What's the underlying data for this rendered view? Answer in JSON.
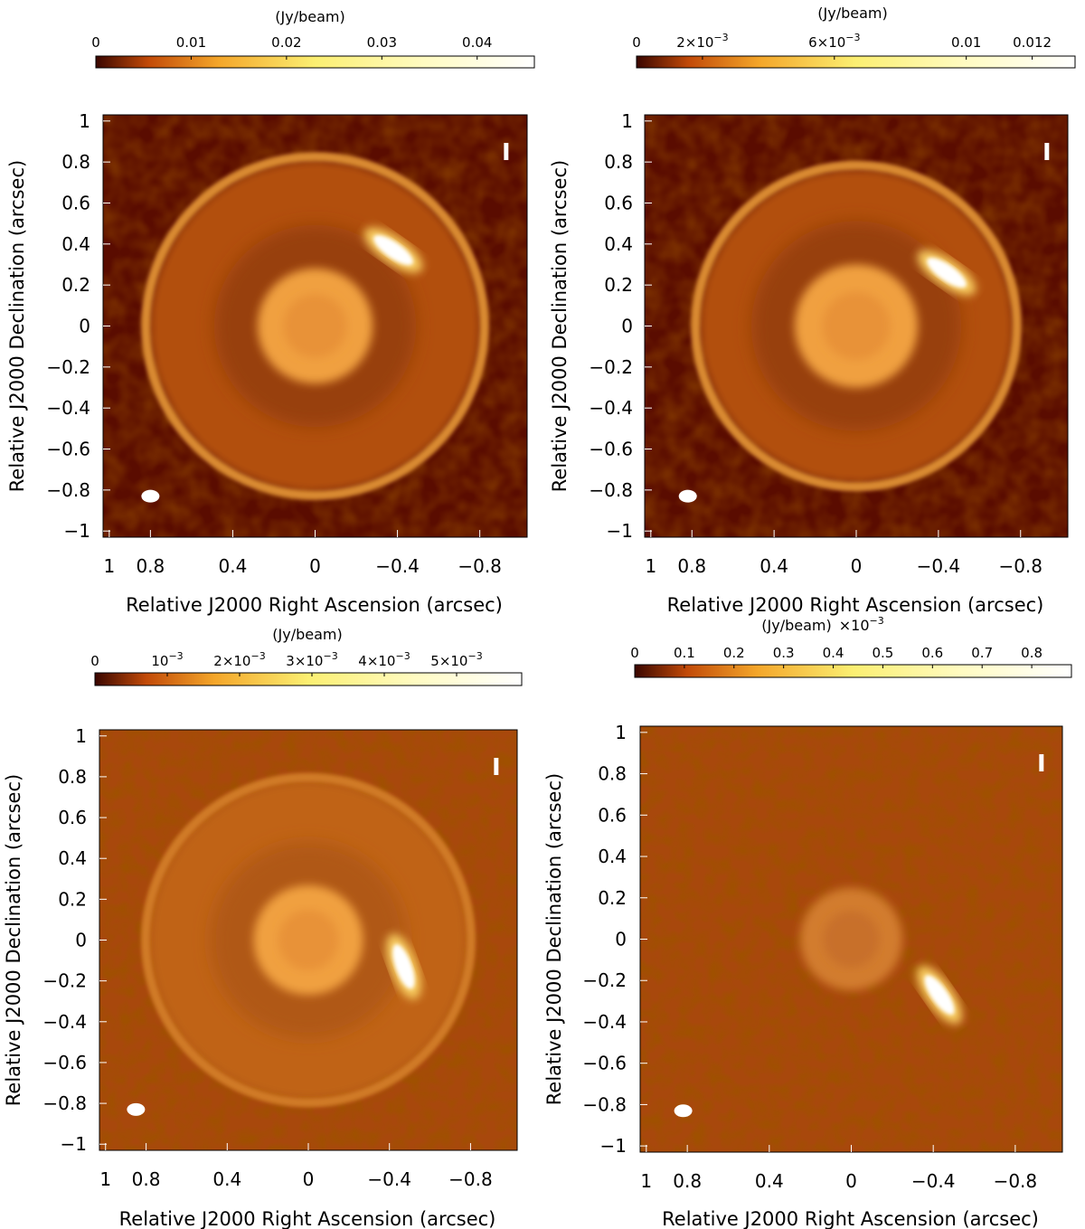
{
  "chart_data": [
    {
      "type": "heatmap",
      "panel": "top-left",
      "colorbar": {
        "unit": "(Jy/beam)",
        "ticks": [
          {
            "value": 0,
            "label": "0"
          },
          {
            "value": 0.01,
            "label": "0.01"
          },
          {
            "value": 0.02,
            "label": "0.02"
          },
          {
            "value": 0.03,
            "label": "0.03"
          },
          {
            "value": 0.04,
            "label": "0.04"
          }
        ],
        "range": [
          0,
          0.046
        ]
      },
      "stokes_label": "I",
      "xlabel": "Relative J2000 Right Ascension (arcsec)",
      "ylabel": "Relative J2000 Declination (arcsec)",
      "xticks": [
        {
          "value": 1,
          "label": "1"
        },
        {
          "value": 0.8,
          "label": "0.8"
        },
        {
          "value": 0.4,
          "label": "0.4"
        },
        {
          "value": 0,
          "label": "0"
        },
        {
          "value": -0.4,
          "label": "−0.4"
        },
        {
          "value": -0.8,
          "label": "−0.8"
        }
      ],
      "yticks": [
        {
          "value": 1,
          "label": "1"
        },
        {
          "value": 0.8,
          "label": "0.8"
        },
        {
          "value": 0.6,
          "label": "0.6"
        },
        {
          "value": 0.4,
          "label": "0.4"
        },
        {
          "value": 0.2,
          "label": "0.2"
        },
        {
          "value": 0,
          "label": "0"
        },
        {
          "value": -0.2,
          "label": "−0.2"
        },
        {
          "value": -0.4,
          "label": "−0.4"
        },
        {
          "value": -0.6,
          "label": "−0.6"
        },
        {
          "value": -0.8,
          "label": "−0.8"
        },
        {
          "value": -1,
          "label": "−1"
        }
      ],
      "xlim": [
        1.03,
        -1.03
      ],
      "ylim": [
        -1.03,
        1.03
      ],
      "features": {
        "outer_ring_radius": 0.84,
        "inner_disk_radius": 0.28,
        "clump": {
          "x": -0.38,
          "y": 0.37
        },
        "beam": {
          "x": 0.8,
          "y": -0.83
        }
      }
    },
    {
      "type": "heatmap",
      "panel": "top-right",
      "colorbar": {
        "unit": "(Jy/beam)",
        "ticks": [
          {
            "value": 0,
            "label": "0"
          },
          {
            "value": 0.002,
            "label": "2×10",
            "exp": "−3"
          },
          {
            "value": 0.006,
            "label": "6×10",
            "exp": "−3"
          },
          {
            "value": 0.01,
            "label": "0.01"
          },
          {
            "value": 0.012,
            "label": "0.012"
          }
        ],
        "range": [
          0,
          0.0133
        ]
      },
      "stokes_label": "I",
      "xlabel": "Relative J2000 Right Ascension (arcsec)",
      "ylabel": "Relative J2000 Declination (arcsec)",
      "xticks": [
        {
          "value": 1,
          "label": "1"
        },
        {
          "value": 0.8,
          "label": "0.8"
        },
        {
          "value": 0.4,
          "label": "0.4"
        },
        {
          "value": 0,
          "label": "0"
        },
        {
          "value": -0.4,
          "label": "−0.4"
        },
        {
          "value": -0.8,
          "label": "−0.8"
        }
      ],
      "yticks": [
        {
          "value": 1,
          "label": "1"
        },
        {
          "value": 0.8,
          "label": "0.8"
        },
        {
          "value": 0.6,
          "label": "0.6"
        },
        {
          "value": 0.4,
          "label": "0.4"
        },
        {
          "value": 0.2,
          "label": "0.2"
        },
        {
          "value": 0,
          "label": "0"
        },
        {
          "value": -0.2,
          "label": "−0.2"
        },
        {
          "value": -0.4,
          "label": "−0.4"
        },
        {
          "value": -0.6,
          "label": "−0.6"
        },
        {
          "value": -0.8,
          "label": "−0.8"
        },
        {
          "value": -1,
          "label": "−1"
        }
      ],
      "xlim": [
        1.03,
        -1.03
      ],
      "ylim": [
        -1.03,
        1.03
      ],
      "features": {
        "outer_ring_radius": 0.8,
        "inner_disk_radius": 0.3,
        "clump": {
          "x": -0.44,
          "y": 0.26
        },
        "beam": {
          "x": 0.82,
          "y": -0.83
        }
      }
    },
    {
      "type": "heatmap",
      "panel": "bottom-left",
      "colorbar": {
        "unit": "(Jy/beam)",
        "ticks": [
          {
            "value": 0,
            "label": "0"
          },
          {
            "value": 0.001,
            "label": "10",
            "exp": "−3"
          },
          {
            "value": 0.002,
            "label": "2×10",
            "exp": "−3"
          },
          {
            "value": 0.003,
            "label": "3×10",
            "exp": "−3"
          },
          {
            "value": 0.004,
            "label": "4×10",
            "exp": "−3"
          },
          {
            "value": 0.005,
            "label": "5×10",
            "exp": "−3"
          }
        ],
        "range": [
          0,
          0.0059
        ]
      },
      "stokes_label": "I",
      "xlabel": "Relative J2000 Right Ascension (arcsec)",
      "ylabel": "Relative J2000 Declination (arcsec)",
      "xticks": [
        {
          "value": 1,
          "label": "1"
        },
        {
          "value": 0.8,
          "label": "0.8"
        },
        {
          "value": 0.4,
          "label": "0.4"
        },
        {
          "value": 0,
          "label": "0"
        },
        {
          "value": -0.4,
          "label": "−0.4"
        },
        {
          "value": -0.8,
          "label": "−0.8"
        }
      ],
      "yticks": [
        {
          "value": 1,
          "label": "1"
        },
        {
          "value": 0.8,
          "label": "0.8"
        },
        {
          "value": 0.6,
          "label": "0.6"
        },
        {
          "value": 0.4,
          "label": "0.4"
        },
        {
          "value": 0.2,
          "label": "0.2"
        },
        {
          "value": 0,
          "label": "0"
        },
        {
          "value": -0.2,
          "label": "−0.2"
        },
        {
          "value": -0.4,
          "label": "−0.4"
        },
        {
          "value": -0.6,
          "label": "−0.6"
        },
        {
          "value": -0.8,
          "label": "−0.8"
        },
        {
          "value": -1,
          "label": "−1"
        }
      ],
      "xlim": [
        1.03,
        -1.03
      ],
      "ylim": [
        -1.03,
        1.03
      ],
      "features": {
        "outer_ring_radius": 0.82,
        "inner_disk_radius": 0.27,
        "clump": {
          "x": -0.47,
          "y": -0.13
        },
        "beam": {
          "x": 0.85,
          "y": -0.83
        }
      }
    },
    {
      "type": "heatmap",
      "panel": "bottom-right",
      "colorbar": {
        "unit": "(Jy/beam)",
        "unit_scale": "×10",
        "unit_scale_exp": "−3",
        "ticks": [
          {
            "value": 0,
            "label": "0"
          },
          {
            "value": 0.1,
            "label": "0.1"
          },
          {
            "value": 0.2,
            "label": "0.2"
          },
          {
            "value": 0.3,
            "label": "0.3"
          },
          {
            "value": 0.4,
            "label": "0.4"
          },
          {
            "value": 0.5,
            "label": "0.5"
          },
          {
            "value": 0.6,
            "label": "0.6"
          },
          {
            "value": 0.7,
            "label": "0.7"
          },
          {
            "value": 0.8,
            "label": "0.8"
          }
        ],
        "range": [
          0,
          0.88
        ]
      },
      "stokes_label": "I",
      "xlabel": "Relative J2000 Right Ascension (arcsec)",
      "ylabel": "Relative J2000 Declination (arcsec)",
      "xticks": [
        {
          "value": 1,
          "label": "1"
        },
        {
          "value": 0.8,
          "label": "0.8"
        },
        {
          "value": 0.4,
          "label": "0.4"
        },
        {
          "value": 0,
          "label": "0"
        },
        {
          "value": -0.4,
          "label": "−0.4"
        },
        {
          "value": -0.8,
          "label": "−0.8"
        }
      ],
      "yticks": [
        {
          "value": 1,
          "label": "1"
        },
        {
          "value": 0.8,
          "label": "0.8"
        },
        {
          "value": 0.6,
          "label": "0.6"
        },
        {
          "value": 0.4,
          "label": "0.4"
        },
        {
          "value": 0.2,
          "label": "0.2"
        },
        {
          "value": 0,
          "label": "0"
        },
        {
          "value": -0.2,
          "label": "−0.2"
        },
        {
          "value": -0.4,
          "label": "−0.4"
        },
        {
          "value": -0.6,
          "label": "−0.6"
        },
        {
          "value": -0.8,
          "label": "−0.8"
        },
        {
          "value": -1,
          "label": "−1"
        }
      ],
      "xlim": [
        1.03,
        -1.03
      ],
      "ylim": [
        -1.03,
        1.03
      ],
      "features": {
        "outer_ring_radius": 0,
        "inner_disk_radius": 0.25,
        "clump": {
          "x": -0.43,
          "y": -0.27
        },
        "beam": {
          "x": 0.82,
          "y": -0.83
        }
      }
    }
  ],
  "colors": {
    "map_low": "#5a0c00",
    "map_mid": "#c46a14",
    "map_high": "#ffffff",
    "colorbar_start": "#3a0600"
  }
}
